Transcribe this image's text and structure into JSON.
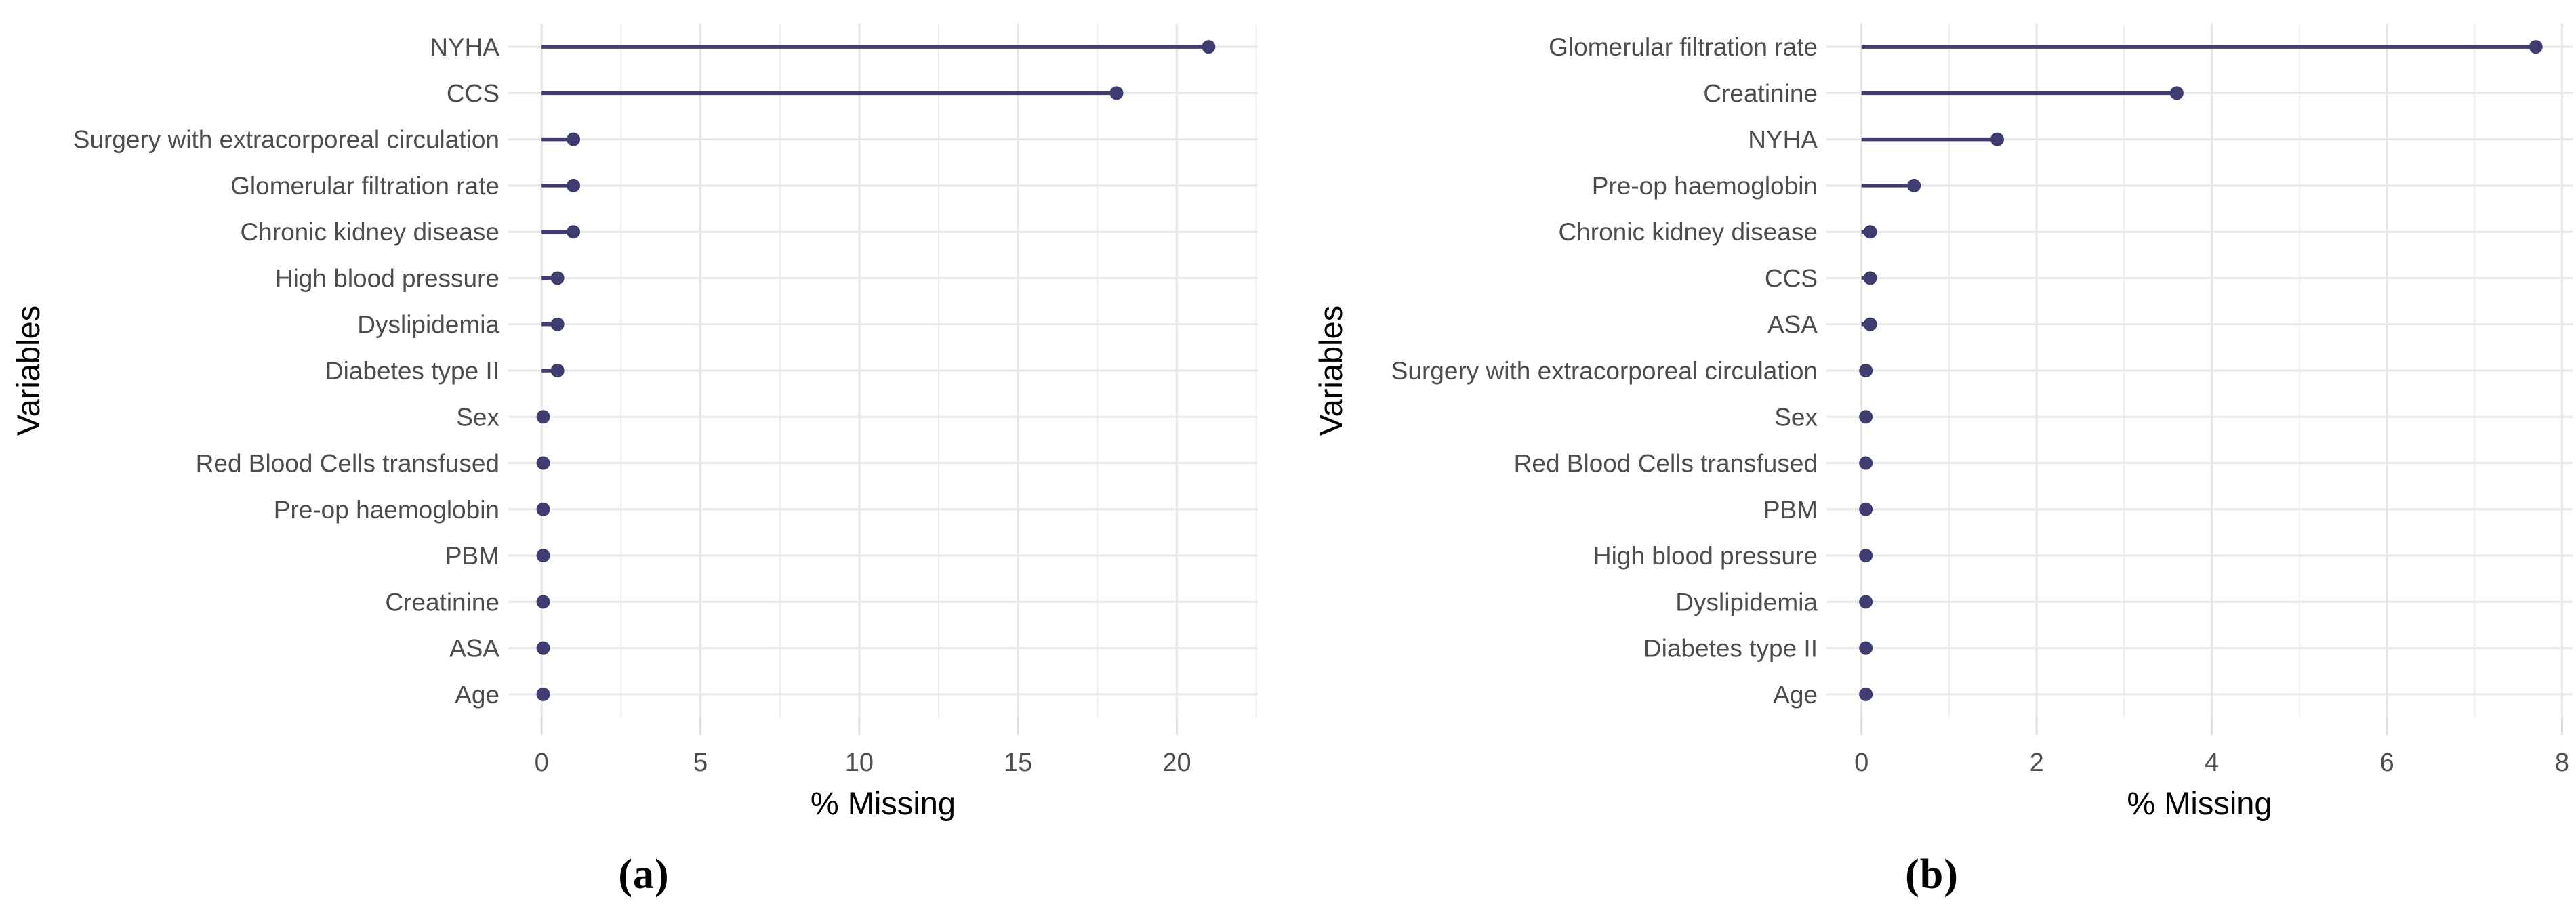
{
  "colors": {
    "lollipop": "#3E3C70",
    "grid_major": "#E7E7E7",
    "grid_minor": "#EFEFEF",
    "row_line": "#E7E7E7",
    "axis_tick": "#DEDEDE",
    "tick_label": "#4D4D4D",
    "category_label": "#4D4D4D",
    "axis_title": "#000000",
    "caption_text": "#000000",
    "background": "#FFFFFF"
  },
  "chart_data": [
    {
      "type": "bar",
      "variant": "lollipop",
      "orientation": "horizontal",
      "panel": "a",
      "caption": "(a)",
      "title": "",
      "xlabel": "% Missing",
      "ylabel": "Variables",
      "xlim": [
        -1.05,
        22.55
      ],
      "x_major_ticks": [
        0,
        5,
        10,
        15,
        20
      ],
      "x_minor_ticks": [
        2.5,
        7.5,
        12.5,
        17.5,
        22.5
      ],
      "grid": true,
      "legend": false,
      "categories": [
        "NYHA",
        "CCS",
        "Surgery with extracorporeal circulation",
        "Glomerular filtration rate",
        "Chronic kidney disease",
        "High blood pressure",
        "Dyslipidemia",
        "Diabetes type II",
        "Sex",
        "Red Blood Cells transfused",
        "Pre-op haemoglobin",
        "PBM",
        "Creatinine",
        "ASA",
        "Age"
      ],
      "values": [
        21.0,
        18.1,
        1.0,
        1.0,
        1.0,
        0.5,
        0.5,
        0.5,
        0.05,
        0.05,
        0.05,
        0.05,
        0.05,
        0.05,
        0.05
      ]
    },
    {
      "type": "bar",
      "variant": "lollipop",
      "orientation": "horizontal",
      "panel": "b",
      "caption": "(b)",
      "title": "",
      "xlabel": "% Missing",
      "ylabel": "Variables",
      "xlim": [
        -0.4,
        8.12
      ],
      "x_major_ticks": [
        0,
        2,
        4,
        6,
        8
      ],
      "x_minor_ticks": [
        1,
        3,
        5,
        7
      ],
      "grid": true,
      "legend": false,
      "categories": [
        "Glomerular filtration rate",
        "Creatinine",
        "NYHA",
        "Pre-op haemoglobin",
        "Chronic kidney disease",
        "CCS",
        "ASA",
        "Surgery with extracorporeal circulation",
        "Sex",
        "Red Blood Cells transfused",
        "PBM",
        "High blood pressure",
        "Dyslipidemia",
        "Diabetes type II",
        "Age"
      ],
      "values": [
        7.7,
        3.6,
        1.55,
        0.6,
        0.1,
        0.1,
        0.1,
        0.05,
        0.05,
        0.05,
        0.05,
        0.05,
        0.05,
        0.05,
        0.05
      ]
    }
  ]
}
